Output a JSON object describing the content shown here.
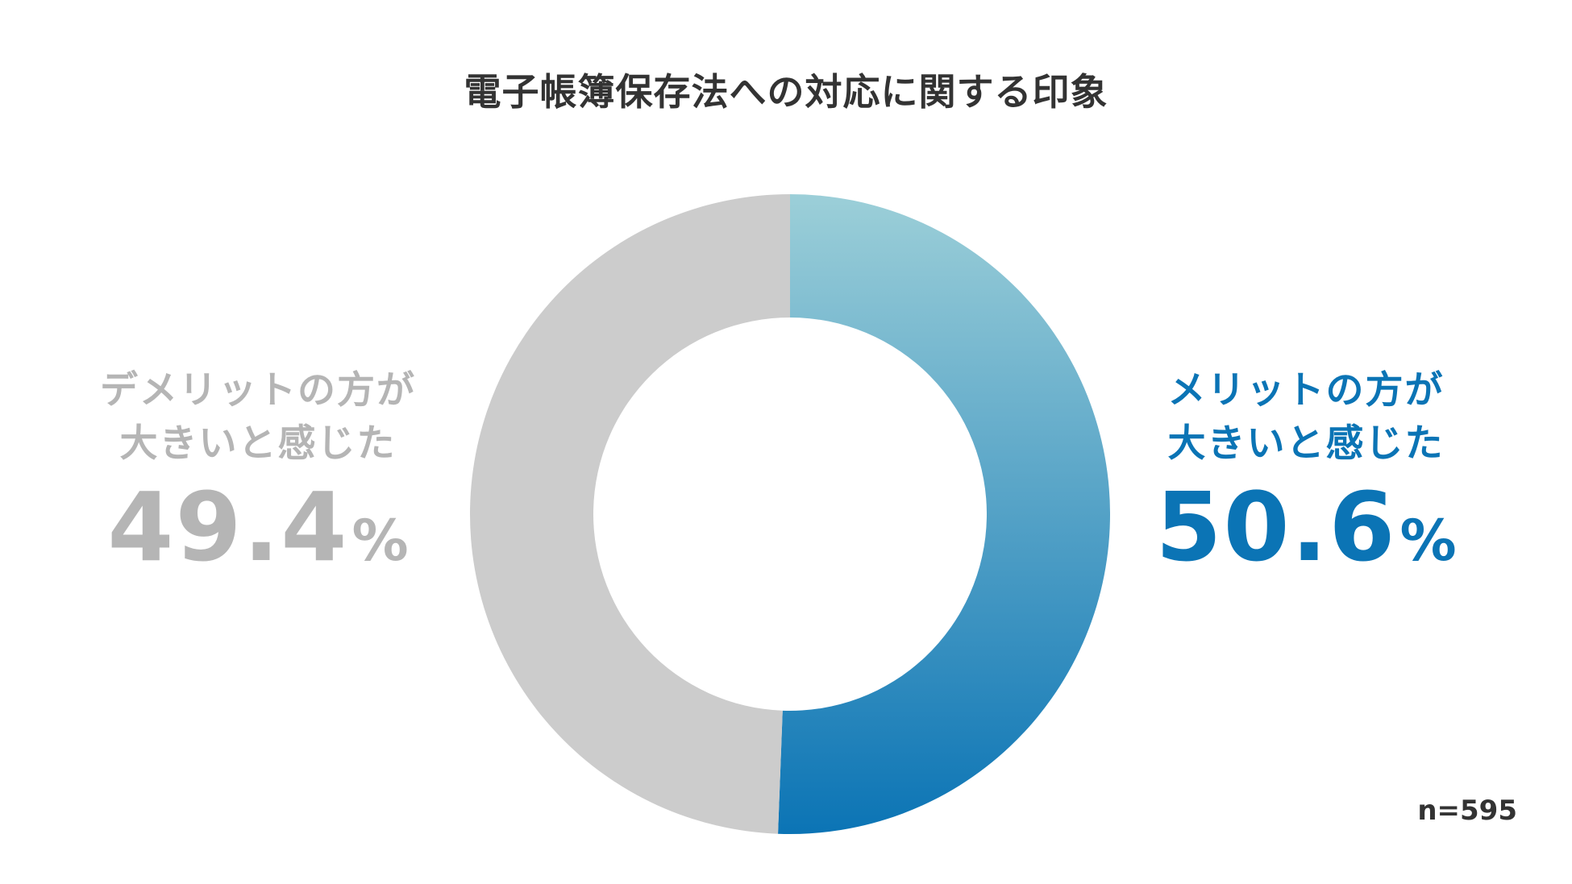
{
  "chart_data": {
    "type": "pie",
    "title": "電子帳簿保存法への対応に関する印象",
    "categories": [
      "メリットの方が大きいと感じた",
      "デメリットの方が大きいと感じた"
    ],
    "values": [
      50.6,
      49.4
    ],
    "unit": "%",
    "colors": [
      "#0b74b5",
      "#cccccc"
    ],
    "gradient_start": "#9ccfd8",
    "donut": true,
    "labels": {
      "right": {
        "line1": "メリットの方が",
        "line2": "大きいと感じた",
        "value": "50.6",
        "unit": "%"
      },
      "left": {
        "line1": "デメリットの方が",
        "line2": "大きいと感じた",
        "value": "49.4",
        "unit": "%"
      }
    },
    "note": "n=595"
  }
}
